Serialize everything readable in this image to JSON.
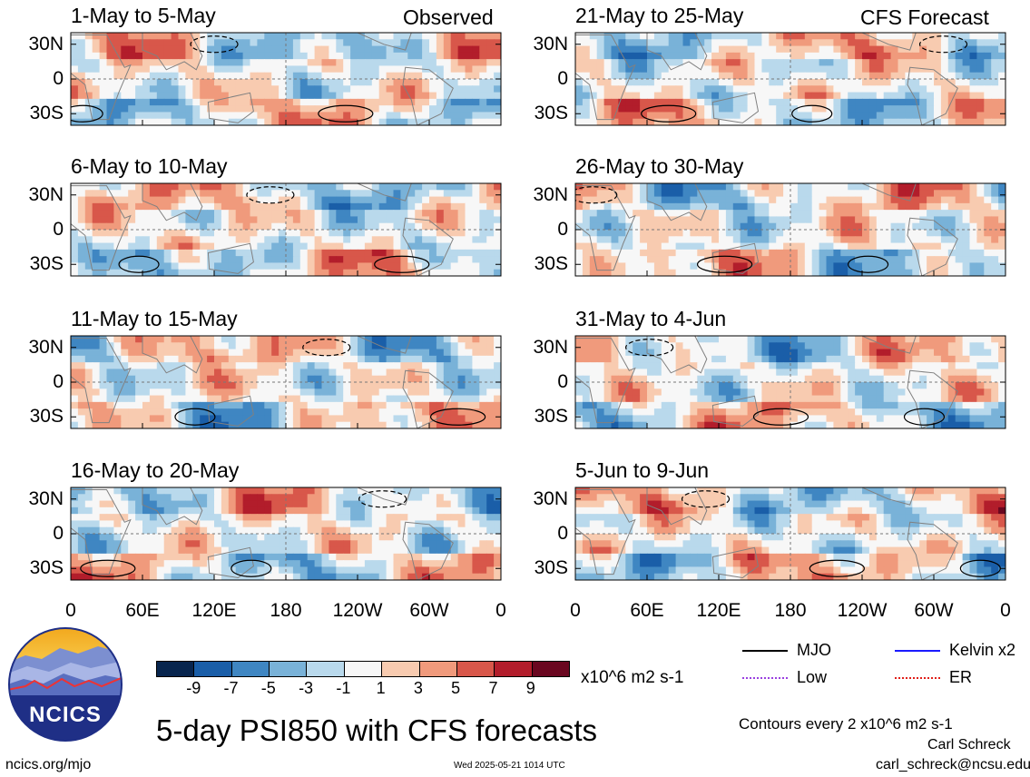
{
  "main_title": "5-day PSI850 with CFS forecasts",
  "column_tags": {
    "observed": "Observed",
    "forecast": "CFS Forecast"
  },
  "logo": {
    "text": "NCICS"
  },
  "footer": {
    "url": "ncics.org/mjo",
    "timestamp": "Wed 2025-05-21 1014 UTC",
    "author": "Carl Schreck",
    "email": "carl_schreck@ncsu.edu",
    "contours_note": "Contours every 2 x10^6 m2 s-1"
  },
  "legend": {
    "items": [
      {
        "label": "MJO",
        "color": "#000000"
      },
      {
        "label": "Kelvin x2",
        "color": "#1a1aff"
      },
      {
        "label": "Low",
        "color": "#9a40e0"
      },
      {
        "label": "ER",
        "color": "#e0201a"
      }
    ]
  },
  "colorbar": {
    "unit": "x10^6 m2 s-1",
    "tick_labels": [
      "-9",
      "-7",
      "-5",
      "-3",
      "-1",
      "1",
      "3",
      "5",
      "7",
      "9"
    ],
    "colors": [
      "#08254e",
      "#1a5ea8",
      "#3f86c2",
      "#79b2d8",
      "#b9d9ec",
      "#f7f7f7",
      "#f8cbb0",
      "#f09a7c",
      "#d8574a",
      "#b21d2b",
      "#6a0720"
    ]
  },
  "chart_data": {
    "type": "heatmap",
    "variable": "850-hPa streamfunction anomaly (5-day means)",
    "y_ticks": [
      "30N",
      "0",
      "30S"
    ],
    "x_ticks": [
      "0",
      "60E",
      "120E",
      "180",
      "120W",
      "60W",
      "0"
    ],
    "lon_range": [
      0,
      360
    ],
    "lat_range": [
      -40,
      40
    ],
    "panels": [
      {
        "title": "1-May to 5-May",
        "column": "Observed"
      },
      {
        "title": "6-May to 10-May",
        "column": "Observed"
      },
      {
        "title": "11-May to 15-May",
        "column": "Observed"
      },
      {
        "title": "16-May to 20-May",
        "column": "Observed"
      },
      {
        "title": "21-May to 25-May",
        "column": "CFS Forecast"
      },
      {
        "title": "26-May to 30-May",
        "column": "CFS Forecast"
      },
      {
        "title": "31-May to 4-Jun",
        "column": "CFS Forecast"
      },
      {
        "title": "5-Jun to 9-Jun",
        "column": "CFS Forecast"
      }
    ]
  }
}
